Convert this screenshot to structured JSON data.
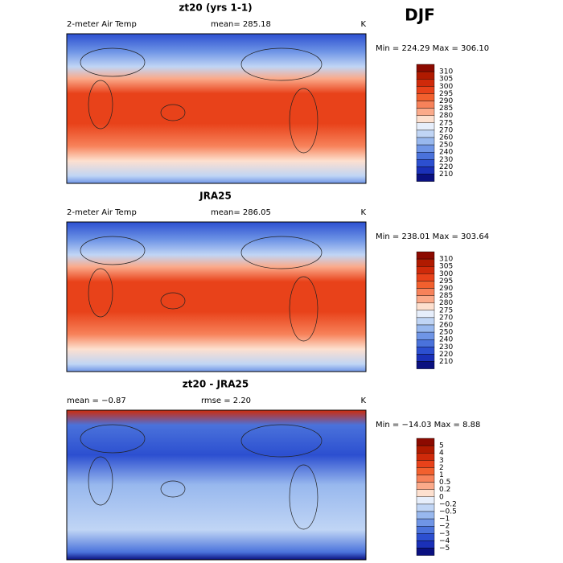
{
  "header": {
    "season": "DJF"
  },
  "panels": [
    {
      "title": "zt20 (yrs 1-1)",
      "left": "2-meter Air Temp",
      "center": "mean= 285.18",
      "right": "K",
      "range": "Min = 224.29 Max = 306.10",
      "levels": [
        "310",
        "305",
        "300",
        "295",
        "290",
        "285",
        "280",
        "275",
        "270",
        "260",
        "250",
        "240",
        "230",
        "220",
        "210"
      ]
    },
    {
      "title": "JRA25",
      "left": "2-meter Air Temp",
      "center": "mean= 286.05",
      "right": "K",
      "range": "Min = 238.01 Max = 303.64",
      "levels": [
        "310",
        "305",
        "300",
        "295",
        "290",
        "285",
        "280",
        "275",
        "270",
        "260",
        "250",
        "240",
        "230",
        "220",
        "210"
      ]
    },
    {
      "title": "zt20 - JRA25",
      "left": "mean =  −0.87",
      "center": "rmse =   2.20",
      "right": "K",
      "range": "Min = −14.03 Max =   8.88",
      "levels": [
        "5",
        "4",
        "3",
        "2",
        "1",
        "0.5",
        "0.2",
        "0",
        "−0.2",
        "−0.5",
        "−1",
        "−2",
        "−3",
        "−4",
        "−5"
      ]
    }
  ],
  "colors": [
    "#8c0a00",
    "#b01a00",
    "#cf2a0a",
    "#e8421a",
    "#f2602e",
    "#f7825a",
    "#fbaa8a",
    "#fde0cf",
    "#e6eefb",
    "#c0d5f5",
    "#98b8ee",
    "#6f95e6",
    "#4a72db",
    "#2c4fd0",
    "#1a30b8",
    "#0a1080"
  ]
}
